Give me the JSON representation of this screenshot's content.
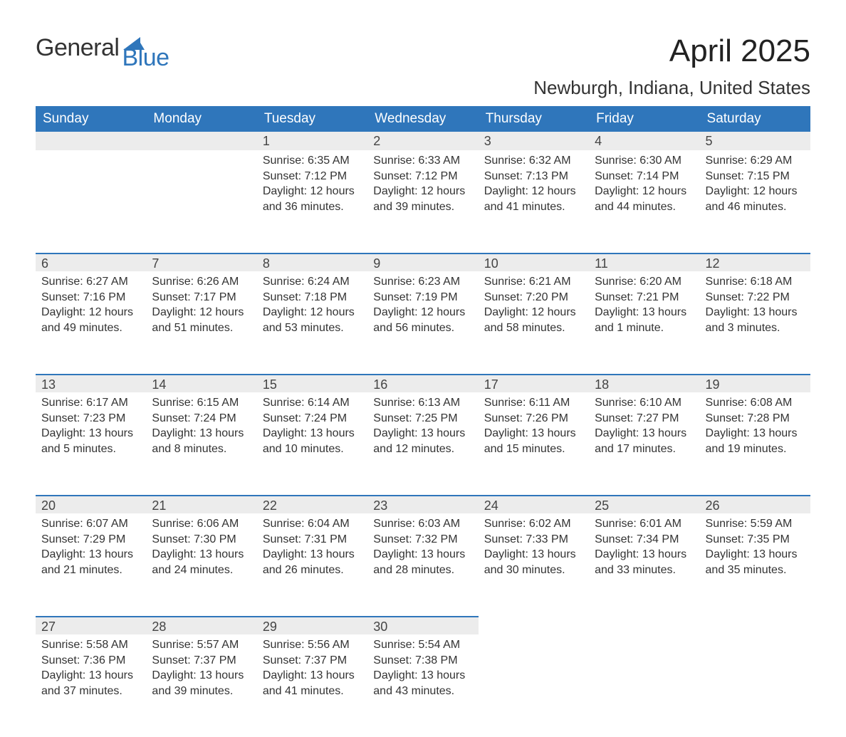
{
  "logo": {
    "word1": "General",
    "word2": "Blue",
    "accent_color": "#2f76bb"
  },
  "title": "April 2025",
  "location": "Newburgh, Indiana, United States",
  "colors": {
    "header_bg": "#2f76bb",
    "header_text": "#ffffff",
    "daynum_bg": "#ececec",
    "rule": "#2f76bb",
    "body_text": "#333333",
    "page_bg": "#ffffff"
  },
  "day_headers": [
    "Sunday",
    "Monday",
    "Tuesday",
    "Wednesday",
    "Thursday",
    "Friday",
    "Saturday"
  ],
  "weeks": [
    [
      null,
      null,
      {
        "n": "1",
        "sunrise": "Sunrise: 6:35 AM",
        "sunset": "Sunset: 7:12 PM",
        "day1": "Daylight: 12 hours",
        "day2": "and 36 minutes."
      },
      {
        "n": "2",
        "sunrise": "Sunrise: 6:33 AM",
        "sunset": "Sunset: 7:12 PM",
        "day1": "Daylight: 12 hours",
        "day2": "and 39 minutes."
      },
      {
        "n": "3",
        "sunrise": "Sunrise: 6:32 AM",
        "sunset": "Sunset: 7:13 PM",
        "day1": "Daylight: 12 hours",
        "day2": "and 41 minutes."
      },
      {
        "n": "4",
        "sunrise": "Sunrise: 6:30 AM",
        "sunset": "Sunset: 7:14 PM",
        "day1": "Daylight: 12 hours",
        "day2": "and 44 minutes."
      },
      {
        "n": "5",
        "sunrise": "Sunrise: 6:29 AM",
        "sunset": "Sunset: 7:15 PM",
        "day1": "Daylight: 12 hours",
        "day2": "and 46 minutes."
      }
    ],
    [
      {
        "n": "6",
        "sunrise": "Sunrise: 6:27 AM",
        "sunset": "Sunset: 7:16 PM",
        "day1": "Daylight: 12 hours",
        "day2": "and 49 minutes."
      },
      {
        "n": "7",
        "sunrise": "Sunrise: 6:26 AM",
        "sunset": "Sunset: 7:17 PM",
        "day1": "Daylight: 12 hours",
        "day2": "and 51 minutes."
      },
      {
        "n": "8",
        "sunrise": "Sunrise: 6:24 AM",
        "sunset": "Sunset: 7:18 PM",
        "day1": "Daylight: 12 hours",
        "day2": "and 53 minutes."
      },
      {
        "n": "9",
        "sunrise": "Sunrise: 6:23 AM",
        "sunset": "Sunset: 7:19 PM",
        "day1": "Daylight: 12 hours",
        "day2": "and 56 minutes."
      },
      {
        "n": "10",
        "sunrise": "Sunrise: 6:21 AM",
        "sunset": "Sunset: 7:20 PM",
        "day1": "Daylight: 12 hours",
        "day2": "and 58 minutes."
      },
      {
        "n": "11",
        "sunrise": "Sunrise: 6:20 AM",
        "sunset": "Sunset: 7:21 PM",
        "day1": "Daylight: 13 hours",
        "day2": "and 1 minute."
      },
      {
        "n": "12",
        "sunrise": "Sunrise: 6:18 AM",
        "sunset": "Sunset: 7:22 PM",
        "day1": "Daylight: 13 hours",
        "day2": "and 3 minutes."
      }
    ],
    [
      {
        "n": "13",
        "sunrise": "Sunrise: 6:17 AM",
        "sunset": "Sunset: 7:23 PM",
        "day1": "Daylight: 13 hours",
        "day2": "and 5 minutes."
      },
      {
        "n": "14",
        "sunrise": "Sunrise: 6:15 AM",
        "sunset": "Sunset: 7:24 PM",
        "day1": "Daylight: 13 hours",
        "day2": "and 8 minutes."
      },
      {
        "n": "15",
        "sunrise": "Sunrise: 6:14 AM",
        "sunset": "Sunset: 7:24 PM",
        "day1": "Daylight: 13 hours",
        "day2": "and 10 minutes."
      },
      {
        "n": "16",
        "sunrise": "Sunrise: 6:13 AM",
        "sunset": "Sunset: 7:25 PM",
        "day1": "Daylight: 13 hours",
        "day2": "and 12 minutes."
      },
      {
        "n": "17",
        "sunrise": "Sunrise: 6:11 AM",
        "sunset": "Sunset: 7:26 PM",
        "day1": "Daylight: 13 hours",
        "day2": "and 15 minutes."
      },
      {
        "n": "18",
        "sunrise": "Sunrise: 6:10 AM",
        "sunset": "Sunset: 7:27 PM",
        "day1": "Daylight: 13 hours",
        "day2": "and 17 minutes."
      },
      {
        "n": "19",
        "sunrise": "Sunrise: 6:08 AM",
        "sunset": "Sunset: 7:28 PM",
        "day1": "Daylight: 13 hours",
        "day2": "and 19 minutes."
      }
    ],
    [
      {
        "n": "20",
        "sunrise": "Sunrise: 6:07 AM",
        "sunset": "Sunset: 7:29 PM",
        "day1": "Daylight: 13 hours",
        "day2": "and 21 minutes."
      },
      {
        "n": "21",
        "sunrise": "Sunrise: 6:06 AM",
        "sunset": "Sunset: 7:30 PM",
        "day1": "Daylight: 13 hours",
        "day2": "and 24 minutes."
      },
      {
        "n": "22",
        "sunrise": "Sunrise: 6:04 AM",
        "sunset": "Sunset: 7:31 PM",
        "day1": "Daylight: 13 hours",
        "day2": "and 26 minutes."
      },
      {
        "n": "23",
        "sunrise": "Sunrise: 6:03 AM",
        "sunset": "Sunset: 7:32 PM",
        "day1": "Daylight: 13 hours",
        "day2": "and 28 minutes."
      },
      {
        "n": "24",
        "sunrise": "Sunrise: 6:02 AM",
        "sunset": "Sunset: 7:33 PM",
        "day1": "Daylight: 13 hours",
        "day2": "and 30 minutes."
      },
      {
        "n": "25",
        "sunrise": "Sunrise: 6:01 AM",
        "sunset": "Sunset: 7:34 PM",
        "day1": "Daylight: 13 hours",
        "day2": "and 33 minutes."
      },
      {
        "n": "26",
        "sunrise": "Sunrise: 5:59 AM",
        "sunset": "Sunset: 7:35 PM",
        "day1": "Daylight: 13 hours",
        "day2": "and 35 minutes."
      }
    ],
    [
      {
        "n": "27",
        "sunrise": "Sunrise: 5:58 AM",
        "sunset": "Sunset: 7:36 PM",
        "day1": "Daylight: 13 hours",
        "day2": "and 37 minutes."
      },
      {
        "n": "28",
        "sunrise": "Sunrise: 5:57 AM",
        "sunset": "Sunset: 7:37 PM",
        "day1": "Daylight: 13 hours",
        "day2": "and 39 minutes."
      },
      {
        "n": "29",
        "sunrise": "Sunrise: 5:56 AM",
        "sunset": "Sunset: 7:37 PM",
        "day1": "Daylight: 13 hours",
        "day2": "and 41 minutes."
      },
      {
        "n": "30",
        "sunrise": "Sunrise: 5:54 AM",
        "sunset": "Sunset: 7:38 PM",
        "day1": "Daylight: 13 hours",
        "day2": "and 43 minutes."
      },
      null,
      null,
      null
    ]
  ]
}
